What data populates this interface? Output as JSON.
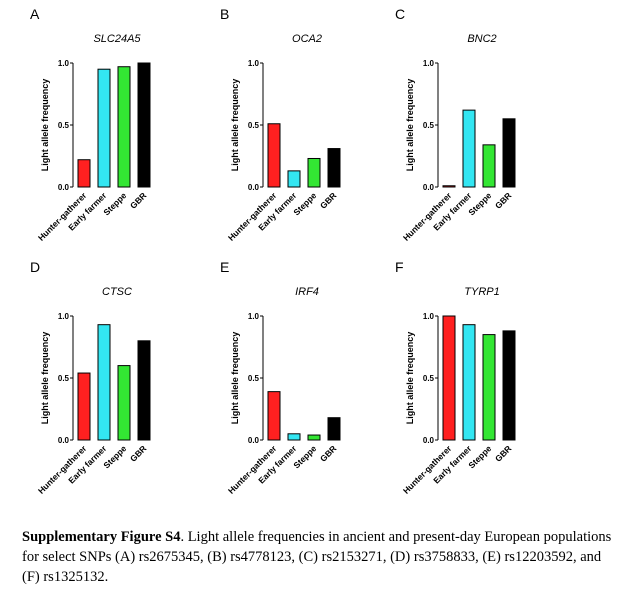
{
  "chart_data": [
    {
      "panel_letter": "A",
      "type": "bar",
      "title": "SLC24A5",
      "ylabel": "Light allele frequency",
      "categories": [
        "Hunter-gatherer",
        "Early farmer",
        "Steppe",
        "GBR"
      ],
      "values": [
        0.22,
        0.95,
        0.97,
        1.0
      ],
      "ylim": [
        0,
        1.0
      ],
      "yticks": [
        "0.0",
        "0.5",
        "1.0"
      ],
      "colors": [
        "#ff2020",
        "#33e6f2",
        "#33e633",
        "#000000"
      ]
    },
    {
      "panel_letter": "B",
      "type": "bar",
      "title": "OCA2",
      "ylabel": "Light allele frequency",
      "categories": [
        "Hunter-gatherer",
        "Early farmer",
        "Steppe",
        "GBR"
      ],
      "values": [
        0.51,
        0.13,
        0.23,
        0.31
      ],
      "ylim": [
        0,
        1.0
      ],
      "yticks": [
        "0.0",
        "0.5",
        "1.0"
      ],
      "colors": [
        "#ff2020",
        "#33e6f2",
        "#33e633",
        "#000000"
      ]
    },
    {
      "panel_letter": "C",
      "type": "bar",
      "title": "BNC2",
      "ylabel": "Light allele frequency",
      "categories": [
        "Hunter-gatherer",
        "Early farmer",
        "Steppe",
        "GBR"
      ],
      "values": [
        0.01,
        0.62,
        0.34,
        0.55
      ],
      "ylim": [
        0,
        1.0
      ],
      "yticks": [
        "0.0",
        "0.5",
        "1.0"
      ],
      "colors": [
        "#ff2020",
        "#33e6f2",
        "#33e633",
        "#000000"
      ]
    },
    {
      "panel_letter": "D",
      "type": "bar",
      "title": "CTSC",
      "ylabel": "Light allele frequency",
      "categories": [
        "Hunter-gatherer",
        "Early farmer",
        "Steppe",
        "GBR"
      ],
      "values": [
        0.54,
        0.93,
        0.6,
        0.8
      ],
      "ylim": [
        0,
        1.0
      ],
      "yticks": [
        "0.0",
        "0.5",
        "1.0"
      ],
      "colors": [
        "#ff2020",
        "#33e6f2",
        "#33e633",
        "#000000"
      ]
    },
    {
      "panel_letter": "E",
      "type": "bar",
      "title": "IRF4",
      "ylabel": "Light allele frequency",
      "categories": [
        "Hunter-gatherer",
        "Early farmer",
        "Steppe",
        "GBR"
      ],
      "values": [
        0.39,
        0.05,
        0.04,
        0.18
      ],
      "ylim": [
        0,
        1.0
      ],
      "yticks": [
        "0.0",
        "0.5",
        "1.0"
      ],
      "colors": [
        "#ff2020",
        "#33e6f2",
        "#33e633",
        "#000000"
      ]
    },
    {
      "panel_letter": "F",
      "type": "bar",
      "title": "TYRP1",
      "ylabel": "Light allele frequency",
      "categories": [
        "Hunter-gatherer",
        "Early farmer",
        "Steppe",
        "GBR"
      ],
      "values": [
        1.0,
        0.93,
        0.85,
        0.88
      ],
      "ylim": [
        0,
        1.0
      ],
      "yticks": [
        "0.0",
        "0.5",
        "1.0"
      ],
      "colors": [
        "#ff2020",
        "#33e6f2",
        "#33e633",
        "#000000"
      ]
    }
  ],
  "caption": {
    "label": "Supplementary Figure S4",
    "text": ". Light allele frequencies in ancient and present-day European populations for select SNPs (A) rs2675345, (B) rs4778123, (C) rs2153271, (D) rs3758833, (E) rs12203592, and (F) rs1325132."
  }
}
